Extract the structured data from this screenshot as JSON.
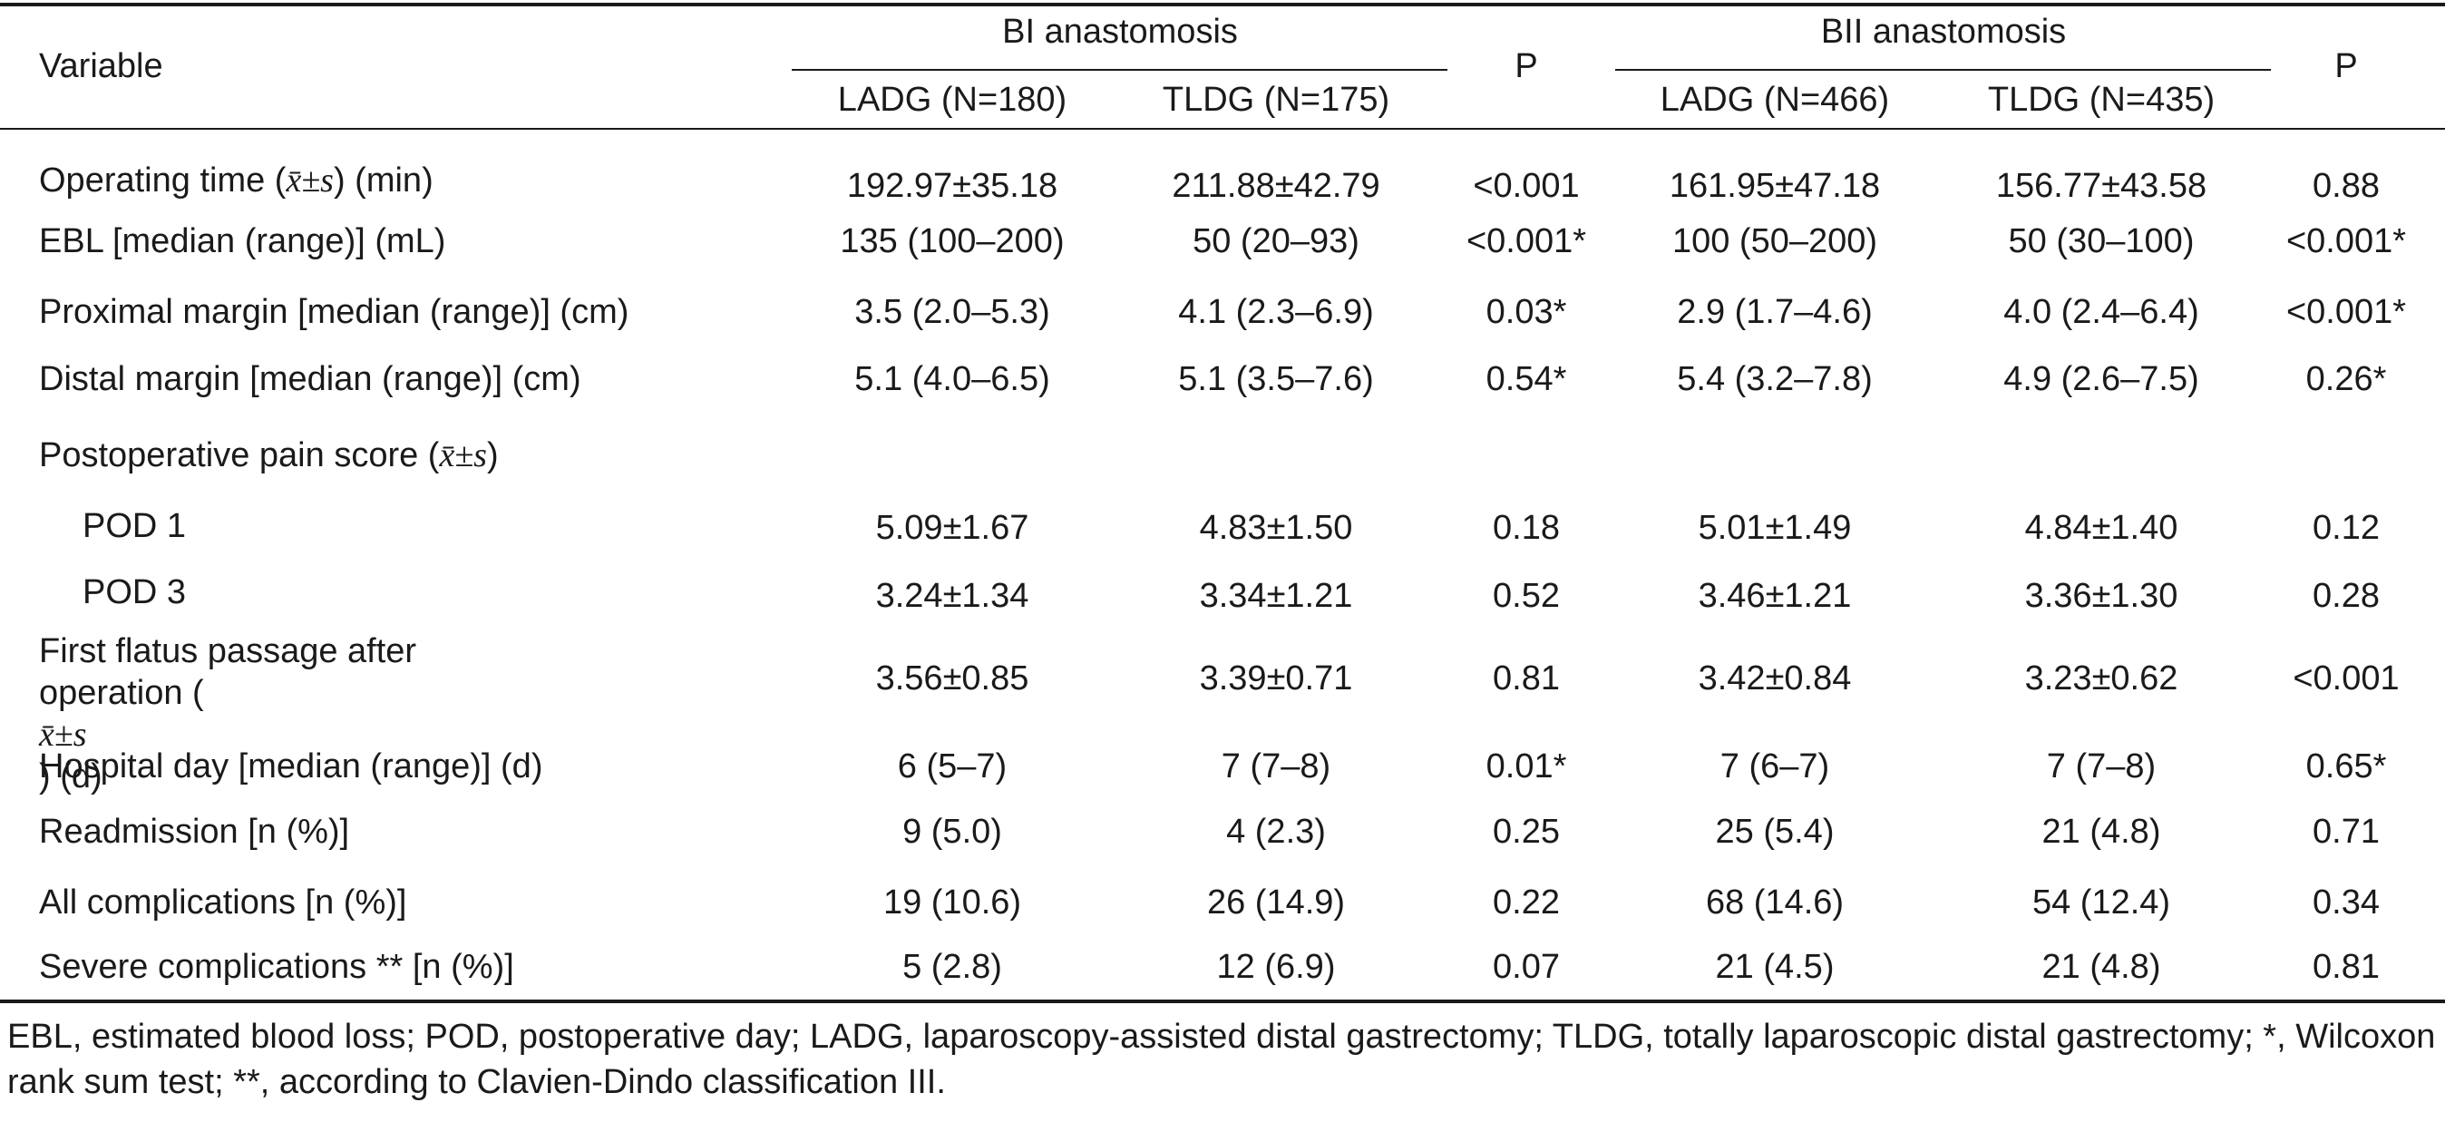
{
  "header": {
    "variable": "Variable",
    "group_bi": "BI anastomosis",
    "group_bii": "BII anastomosis",
    "p_label": "P",
    "bi_ladg": "LADG (N=180)",
    "bi_tldg": "TLDG (N=175)",
    "bii_ladg": "LADG (N=466)",
    "bii_tldg": "TLDG (N=435)"
  },
  "rows": [
    {
      "label_pre": "Operating time (",
      "formula": "x̄±s",
      "label_post": ") (min)",
      "bi_ladg": "192.97±35.18",
      "bi_tldg": "211.88±42.79",
      "bi_p": "<0.001",
      "bii_ladg": "161.95±47.18",
      "bii_tldg": "156.77±43.58",
      "bii_p": "0.88"
    },
    {
      "label": "EBL [median (range)] (mL)",
      "bi_ladg": "135 (100–200)",
      "bi_tldg": "50 (20–93)",
      "bi_p": "<0.001*",
      "bii_ladg": "100 (50–200)",
      "bii_tldg": "50 (30–100)",
      "bii_p": "<0.001*"
    },
    {
      "label": "Proximal margin [median (range)] (cm)",
      "bi_ladg": "3.5 (2.0–5.3)",
      "bi_tldg": "4.1 (2.3–6.9)",
      "bi_p": "0.03*",
      "bii_ladg": "2.9 (1.7–4.6)",
      "bii_tldg": "4.0 (2.4–6.4)",
      "bii_p": "<0.001*"
    },
    {
      "label": "Distal margin [median (range)] (cm)",
      "bi_ladg": "5.1 (4.0–6.5)",
      "bi_tldg": "5.1 (3.5–7.6)",
      "bi_p": "0.54*",
      "bii_ladg": "5.4 (3.2–7.8)",
      "bii_tldg": "4.9 (2.6–7.5)",
      "bii_p": "0.26*"
    },
    {
      "label_pre": "Postoperative pain score (",
      "formula": "x̄±s",
      "label_post": ")"
    },
    {
      "label": "POD 1",
      "bi_ladg": "5.09±1.67",
      "bi_tldg": "4.83±1.50",
      "bi_p": "0.18",
      "bii_ladg": "5.01±1.49",
      "bii_tldg": "4.84±1.40",
      "bii_p": "0.12"
    },
    {
      "label": "POD 3",
      "bi_ladg": "3.24±1.34",
      "bi_tldg": "3.34±1.21",
      "bi_p": "0.52",
      "bii_ladg": "3.46±1.21",
      "bii_tldg": "3.36±1.30",
      "bii_p": "0.28"
    },
    {
      "label_line1": "First flatus passage after",
      "label_pre": "operation (",
      "formula": "x̄±s",
      "label_post": ") (d)",
      "bi_ladg": "3.56±0.85",
      "bi_tldg": "3.39±0.71",
      "bi_p": "0.81",
      "bii_ladg": "3.42±0.84",
      "bii_tldg": "3.23±0.62",
      "bii_p": "<0.001"
    },
    {
      "label": "Hospital day [median (range)] (d)",
      "bi_ladg": "6 (5–7)",
      "bi_tldg": "7 (7–8)",
      "bi_p": "0.01*",
      "bii_ladg": "7 (6–7)",
      "bii_tldg": "7 (7–8)",
      "bii_p": "0.65*"
    },
    {
      "label": "Readmission [n (%)]",
      "bi_ladg": "9 (5.0)",
      "bi_tldg": "4 (2.3)",
      "bi_p": "0.25",
      "bii_ladg": "25 (5.4)",
      "bii_tldg": "21 (4.8)",
      "bii_p": "0.71"
    },
    {
      "label": "All complications [n (%)]",
      "bi_ladg": "19 (10.6)",
      "bi_tldg": "26 (14.9)",
      "bi_p": "0.22",
      "bii_ladg": "68 (14.6)",
      "bii_tldg": "54 (12.4)",
      "bii_p": "0.34"
    },
    {
      "label": "Severe complications ** [n (%)]",
      "bi_ladg": "5 (2.8)",
      "bi_tldg": "12 (6.9)",
      "bi_p": "0.07",
      "bii_ladg": "21 (4.5)",
      "bii_tldg": "21 (4.8)",
      "bii_p": "0.81"
    }
  ],
  "footnote": "EBL, estimated blood loss; POD, postoperative day; LADG, laparoscopy-assisted distal gastrectomy; TLDG, totally laparoscopic distal gastrectomy; *, Wilcoxon rank sum test; **, according to Clavien-Dindo classification III."
}
